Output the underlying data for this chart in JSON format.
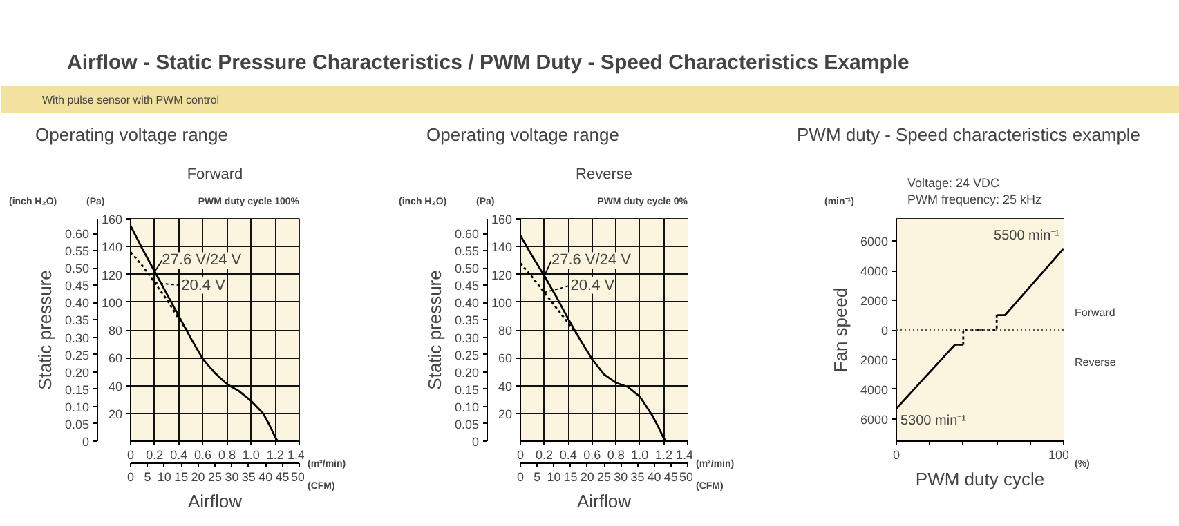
{
  "chart_data": [
    {
      "type": "line",
      "title": "Operating voltage range",
      "subtitle": "Forward",
      "xlabel": "Airflow",
      "y2label": "Static pressure",
      "legend": "top",
      "annotations": [
        "Airflow - Static Pressure Characteristics / PWM Duty - Speed Characteristics Example",
        "With pulse sensor with PWM control",
        "(inch H₂O)",
        "(Pa)",
        "(m³/min)",
        "(CFM)",
        "PWM duty cycle 100%"
      ],
      "xlim": [
        0,
        1.4
      ],
      "xticks": [
        0,
        0.2,
        0.4,
        0.6,
        0.8,
        {
          "value": 1.0,
          "label": "1.0"
        },
        1.2,
        1.4
      ],
      "ylim": [
        0,
        160
      ],
      "yticks": [
        20,
        40,
        60,
        80,
        100,
        120,
        140,
        160
      ],
      "y2lim": [
        0,
        0.642
      ],
      "y2ticks": [
        0,
        0.05,
        {
          "value": 0.1,
          "label": "0.10"
        },
        0.15,
        {
          "value": 0.2,
          "label": "0.20"
        },
        0.25,
        {
          "value": 0.3,
          "label": "0.30"
        },
        0.35,
        {
          "value": 0.4,
          "label": "0.40"
        },
        0.45,
        {
          "value": 0.5,
          "label": "0.50"
        },
        0.55,
        {
          "value": 0.6,
          "label": "0.60"
        }
      ],
      "x2lim": [
        0,
        50
      ],
      "x2ticks": [
        0,
        5,
        10,
        15,
        20,
        25,
        30,
        35,
        40,
        45,
        50
      ],
      "grid": true,
      "series": [
        {
          "name": "27.6 V/24 V",
          "color": "#000000",
          "line_style": "solid",
          "x": [
            0,
            0.1,
            0.2,
            0.3,
            0.4,
            0.5,
            0.6,
            0.7,
            0.8,
            0.9,
            1.0,
            1.1,
            1.15,
            1.2,
            1.22
          ],
          "values": [
            155,
            138,
            122,
            106,
            90,
            74,
            59,
            49,
            41,
            36,
            29,
            20,
            12,
            3,
            0
          ]
        },
        {
          "name": "20.4 V",
          "color": "#000000",
          "line_style": "dashed",
          "x": [
            0,
            0.1,
            0.2,
            0.3,
            0.4,
            0.48
          ],
          "values": [
            136,
            126,
            114,
            102,
            88,
            78
          ]
        }
      ]
    },
    {
      "type": "line",
      "title": "Operating voltage range",
      "subtitle": "Reverse",
      "xlabel": "Airflow",
      "y2label": "Static pressure",
      "legend": "top",
      "annotations": [
        "(inch H₂O)",
        "(Pa)",
        "(m³/min)",
        "(CFM)",
        "PWM duty cycle 0%"
      ],
      "xlim": [
        0,
        1.4
      ],
      "xticks": [
        0,
        0.2,
        0.4,
        0.6,
        0.8,
        {
          "value": 1.0,
          "label": "1.0"
        },
        1.2,
        1.4
      ],
      "ylim": [
        0,
        160
      ],
      "yticks": [
        20,
        40,
        60,
        80,
        100,
        120,
        140,
        160
      ],
      "y2lim": [
        0,
        0.642
      ],
      "y2ticks": [
        0,
        0.05,
        {
          "value": 0.1,
          "label": "0.10"
        },
        0.15,
        {
          "value": 0.2,
          "label": "0.20"
        },
        0.25,
        {
          "value": 0.3,
          "label": "0.30"
        },
        0.35,
        {
          "value": 0.4,
          "label": "0.40"
        },
        0.45,
        {
          "value": 0.5,
          "label": "0.50"
        },
        0.55,
        {
          "value": 0.6,
          "label": "0.60"
        }
      ],
      "x2lim": [
        0,
        50
      ],
      "x2ticks": [
        0,
        5,
        10,
        15,
        20,
        25,
        30,
        35,
        40,
        45,
        50
      ],
      "grid": true,
      "series": [
        {
          "name": "27.6 V/24 V",
          "color": "#000000",
          "line_style": "solid",
          "x": [
            0,
            0.1,
            0.2,
            0.3,
            0.4,
            0.5,
            0.6,
            0.7,
            0.8,
            0.9,
            1.0,
            1.1,
            1.15,
            1.2,
            1.22
          ],
          "values": [
            148,
            133,
            119,
            104,
            88,
            73,
            59,
            48,
            42,
            39,
            32,
            19,
            11,
            2,
            0
          ]
        },
        {
          "name": "20.4 V",
          "color": "#000000",
          "line_style": "dashed",
          "x": [
            0,
            0.1,
            0.2,
            0.3,
            0.4,
            0.48
          ],
          "values": [
            128,
            118,
            107,
            96,
            85,
            76
          ]
        }
      ]
    },
    {
      "type": "line",
      "title": "PWM duty - Speed characteristics example",
      "xlabel": "PWM duty cycle",
      "ylabel": "Fan speed",
      "annotations": [
        "(min⁻¹)",
        "Voltage: 24 VDC",
        "PWM frequency: 25 kHz",
        "Forward",
        "Reverse",
        "(%)",
        {
          "text": "5500 min⁻¹",
          "x": 100,
          "y": 5500
        },
        {
          "text": "5300 min⁻¹",
          "x": 0,
          "y": -5300
        }
      ],
      "xlim": [
        0,
        100
      ],
      "xticks": [
        0,
        {
          "value": 20,
          "label": null
        },
        {
          "value": 40,
          "label": null
        },
        {
          "value": 60,
          "label": null
        },
        {
          "value": 80,
          "label": null
        },
        100
      ],
      "ylim": [
        -7500,
        7500
      ],
      "yticks": [
        {
          "value": -6000,
          "label": "6000"
        },
        {
          "value": -4000,
          "label": "4000"
        },
        {
          "value": -2000,
          "label": "2000"
        },
        0,
        2000,
        4000,
        6000
      ],
      "grid": false,
      "ref_lines": [
        {
          "axis": "y",
          "value": 0,
          "color": "#555555",
          "line_style": "dotted"
        }
      ],
      "series": [
        {
          "color": "#000000",
          "line_style": "solid",
          "x": [
            0,
            35,
            40
          ],
          "values": [
            -5300,
            -1000,
            -1000
          ]
        },
        {
          "color": "#000000",
          "line_style": "dashed",
          "x": [
            40,
            40,
            60,
            60
          ],
          "values": [
            -1000,
            0,
            0,
            1000
          ]
        },
        {
          "color": "#000000",
          "line_style": "solid",
          "x": [
            60,
            65,
            100
          ],
          "values": [
            1000,
            1000,
            5500
          ]
        }
      ]
    }
  ]
}
